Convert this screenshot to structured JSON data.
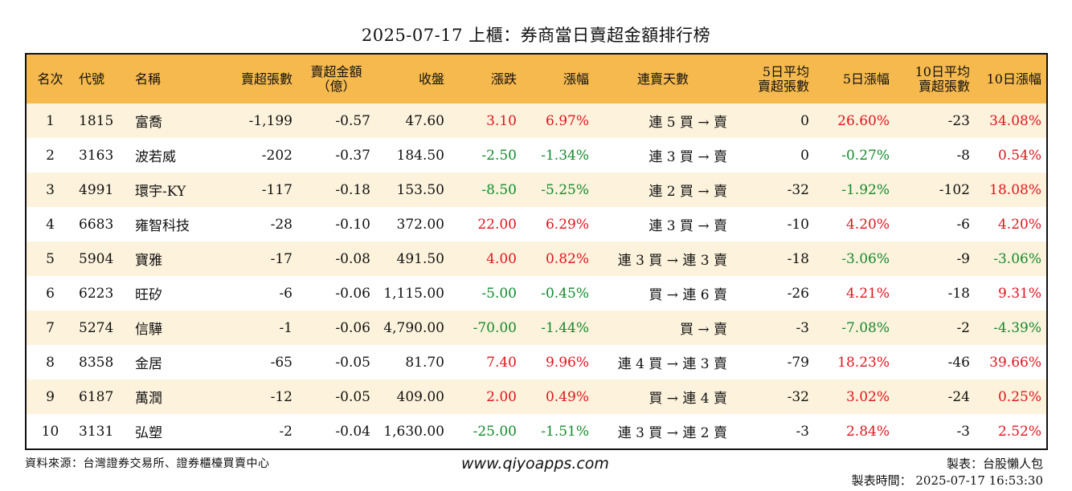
{
  "title": "2025-07-17 上櫃：券商當日賣超金額排行榜",
  "headers": {
    "rank": "名次",
    "code": "代號",
    "name": "名稱",
    "sell_shares": "賣超張數",
    "sell_amount_1": "賣超金額",
    "sell_amount_2": "（億）",
    "close": "收盤",
    "change": "漲跌",
    "pct": "漲幅",
    "streak": "連賣天數",
    "avg5_1": "5日平均",
    "avg5_2": "賣超張數",
    "pct5": "5日漲幅",
    "avg10_1": "10日平均",
    "avg10_2": "賣超張數",
    "pct10": "10日漲幅"
  },
  "rows": [
    {
      "rank": "1",
      "code": "1815",
      "name": "富喬",
      "sell_shares": "-1,199",
      "sell_amount": "-0.57",
      "close": "47.60",
      "change": "3.10",
      "change_dir": "up",
      "pct": "6.97%",
      "pct_dir": "up",
      "streak": "連 5 買 → 賣",
      "avg5": "0",
      "pct5": "26.60%",
      "pct5_dir": "up",
      "avg10": "-23",
      "pct10": "34.08%",
      "pct10_dir": "up"
    },
    {
      "rank": "2",
      "code": "3163",
      "name": "波若威",
      "sell_shares": "-202",
      "sell_amount": "-0.37",
      "close": "184.50",
      "change": "-2.50",
      "change_dir": "down",
      "pct": "-1.34%",
      "pct_dir": "down",
      "streak": "連 3 買 → 賣",
      "avg5": "0",
      "pct5": "-0.27%",
      "pct5_dir": "down",
      "avg10": "-8",
      "pct10": "0.54%",
      "pct10_dir": "up"
    },
    {
      "rank": "3",
      "code": "4991",
      "name": "環宇-KY",
      "sell_shares": "-117",
      "sell_amount": "-0.18",
      "close": "153.50",
      "change": "-8.50",
      "change_dir": "down",
      "pct": "-5.25%",
      "pct_dir": "down",
      "streak": "連 2 買 → 賣",
      "avg5": "-32",
      "pct5": "-1.92%",
      "pct5_dir": "down",
      "avg10": "-102",
      "pct10": "18.08%",
      "pct10_dir": "up"
    },
    {
      "rank": "4",
      "code": "6683",
      "name": "雍智科技",
      "sell_shares": "-28",
      "sell_amount": "-0.10",
      "close": "372.00",
      "change": "22.00",
      "change_dir": "up",
      "pct": "6.29%",
      "pct_dir": "up",
      "streak": "連 3 買 → 賣",
      "avg5": "-10",
      "pct5": "4.20%",
      "pct5_dir": "up",
      "avg10": "-6",
      "pct10": "4.20%",
      "pct10_dir": "up"
    },
    {
      "rank": "5",
      "code": "5904",
      "name": "寶雅",
      "sell_shares": "-17",
      "sell_amount": "-0.08",
      "close": "491.50",
      "change": "4.00",
      "change_dir": "up",
      "pct": "0.82%",
      "pct_dir": "up",
      "streak": "連 3 買 → 連 3 賣",
      "avg5": "-18",
      "pct5": "-3.06%",
      "pct5_dir": "down",
      "avg10": "-9",
      "pct10": "-3.06%",
      "pct10_dir": "down"
    },
    {
      "rank": "6",
      "code": "6223",
      "name": "旺矽",
      "sell_shares": "-6",
      "sell_amount": "-0.06",
      "close": "1,115.00",
      "change": "-5.00",
      "change_dir": "down",
      "pct": "-0.45%",
      "pct_dir": "down",
      "streak": "買 → 連 6 賣",
      "avg5": "-26",
      "pct5": "4.21%",
      "pct5_dir": "up",
      "avg10": "-18",
      "pct10": "9.31%",
      "pct10_dir": "up"
    },
    {
      "rank": "7",
      "code": "5274",
      "name": "信驊",
      "sell_shares": "-1",
      "sell_amount": "-0.06",
      "close": "4,790.00",
      "change": "-70.00",
      "change_dir": "down",
      "pct": "-1.44%",
      "pct_dir": "down",
      "streak": "買 → 賣",
      "avg5": "-3",
      "pct5": "-7.08%",
      "pct5_dir": "down",
      "avg10": "-2",
      "pct10": "-4.39%",
      "pct10_dir": "down"
    },
    {
      "rank": "8",
      "code": "8358",
      "name": "金居",
      "sell_shares": "-65",
      "sell_amount": "-0.05",
      "close": "81.70",
      "change": "7.40",
      "change_dir": "up",
      "pct": "9.96%",
      "pct_dir": "up",
      "streak": "連 4 買 → 連 3 賣",
      "avg5": "-79",
      "pct5": "18.23%",
      "pct5_dir": "up",
      "avg10": "-46",
      "pct10": "39.66%",
      "pct10_dir": "up"
    },
    {
      "rank": "9",
      "code": "6187",
      "name": "萬潤",
      "sell_shares": "-12",
      "sell_amount": "-0.05",
      "close": "409.00",
      "change": "2.00",
      "change_dir": "up",
      "pct": "0.49%",
      "pct_dir": "up",
      "streak": "買 → 連 4 賣",
      "avg5": "-32",
      "pct5": "3.02%",
      "pct5_dir": "up",
      "avg10": "-24",
      "pct10": "0.25%",
      "pct10_dir": "up"
    },
    {
      "rank": "10",
      "code": "3131",
      "name": "弘塑",
      "sell_shares": "-2",
      "sell_amount": "-0.04",
      "close": "1,630.00",
      "change": "-25.00",
      "change_dir": "down",
      "pct": "-1.51%",
      "pct_dir": "down",
      "streak": "連 3 買 → 連 2 賣",
      "avg5": "-3",
      "pct5": "2.84%",
      "pct5_dir": "up",
      "avg10": "-3",
      "pct10": "2.52%",
      "pct10_dir": "up"
    }
  ],
  "colors": {
    "up": "#e0141e",
    "down": "#138a2d",
    "header_bg": "#f6b94d",
    "stripe_bg": "#fdf2dc"
  },
  "footer": {
    "source": "資料來源：台灣證券交易所、證券櫃檯買賣中心",
    "website": "www.qiyoapps.com",
    "maker": "製表：台股懶人包",
    "time": "製表時間： 2025-07-17 16:53:30"
  }
}
